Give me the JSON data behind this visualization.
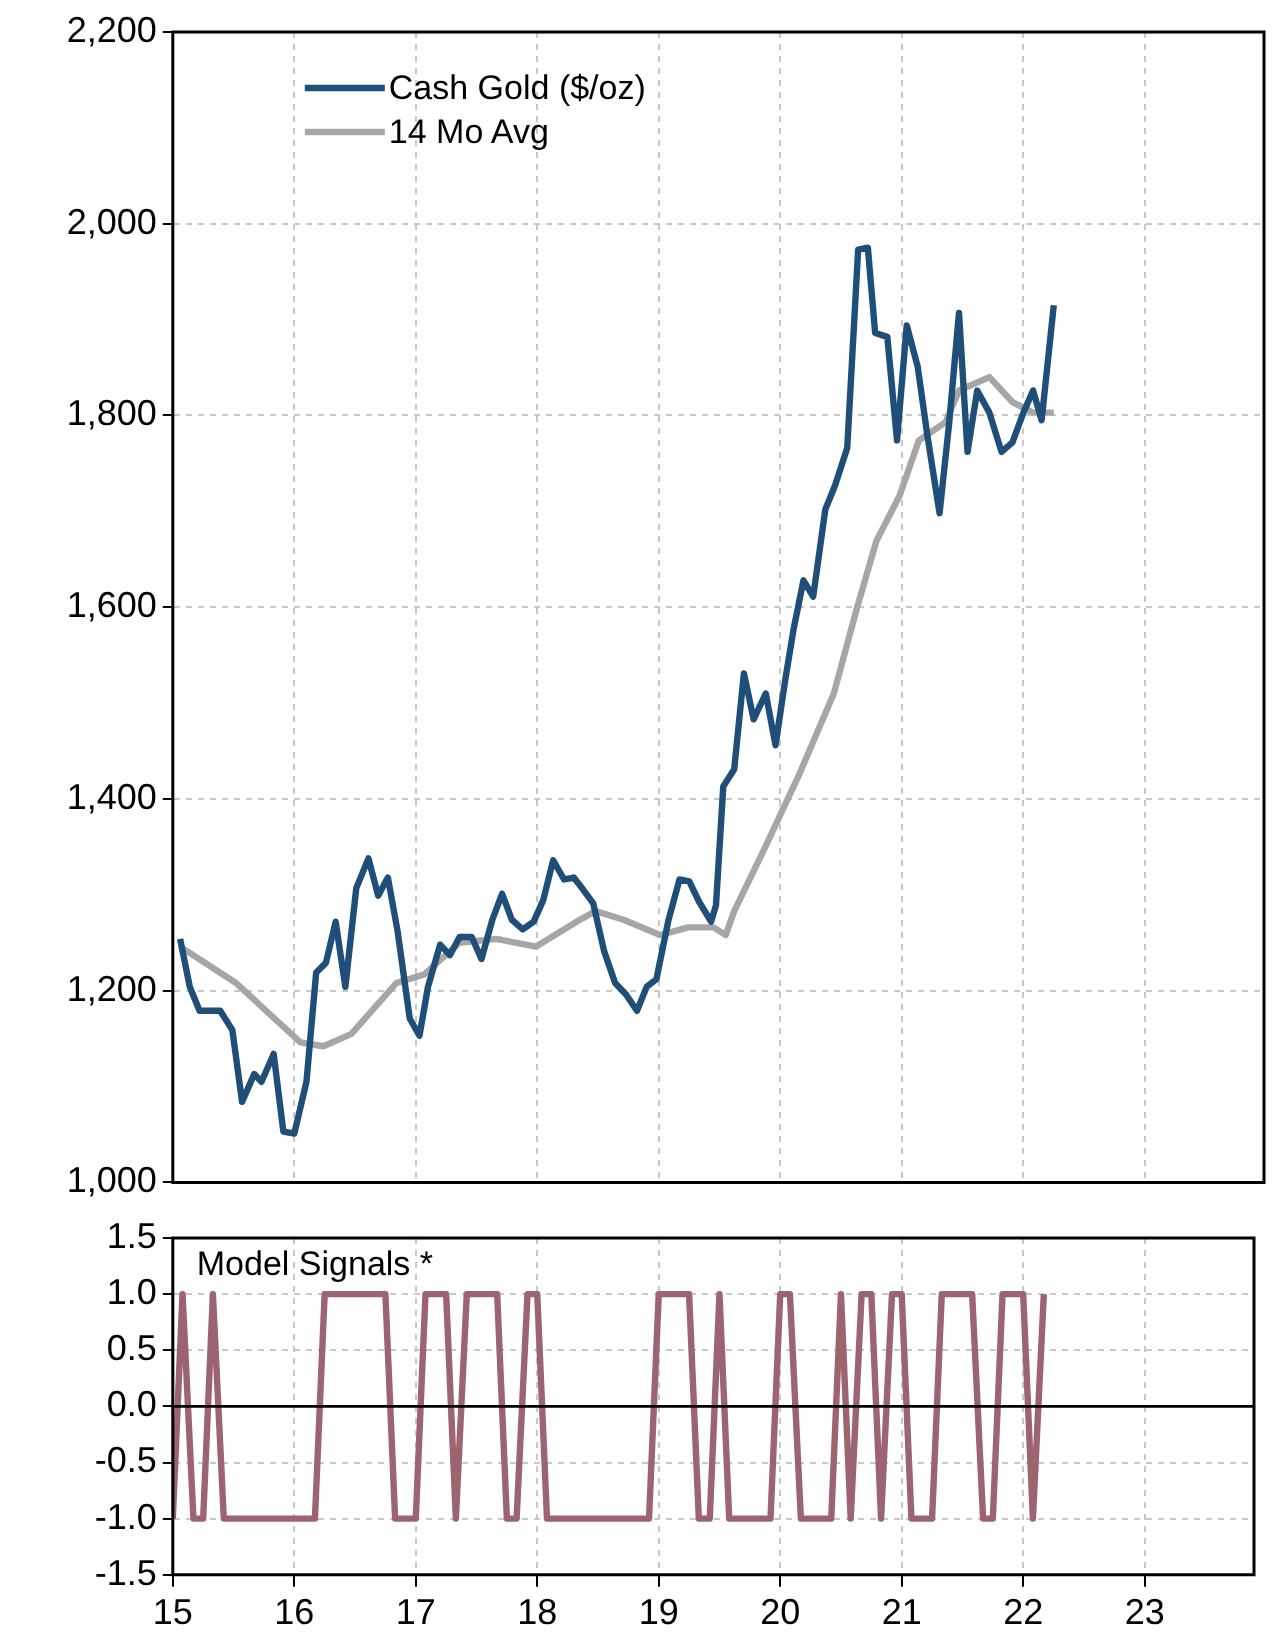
{
  "chart_data": [
    {
      "type": "line",
      "legend": "top left",
      "grid": true,
      "tick_labels": "y",
      "xlim": [
        15,
        23.98
      ],
      "xticks": [
        15,
        16,
        17,
        18,
        19,
        20,
        21,
        22,
        23
      ],
      "ylim": [
        1000,
        2200
      ],
      "yticks": [
        {
          "value": 1000,
          "label": "1,000"
        },
        {
          "value": 1200,
          "label": "1,200"
        },
        {
          "value": 1400,
          "label": "1,400"
        },
        {
          "value": 1600,
          "label": "1,600"
        },
        {
          "value": 1800,
          "label": "1,800"
        },
        {
          "value": 2000,
          "label": "2,000"
        },
        {
          "value": 2200,
          "label": "2,200"
        }
      ],
      "series": [
        {
          "name": "Cash Gold ($/oz)",
          "color": "#1f4e79",
          "x": [
            15.06,
            15.14,
            15.22,
            15.39,
            15.49,
            15.57,
            15.67,
            15.73,
            15.83,
            15.91,
            16,
            16.1,
            16.18,
            16.26,
            16.34,
            16.42,
            16.51,
            16.61,
            16.69,
            16.77,
            16.85,
            16.95,
            17.03,
            17.1,
            17.2,
            17.28,
            17.36,
            17.46,
            17.54,
            17.63,
            17.71,
            17.79,
            17.88,
            17.97,
            18.05,
            18.13,
            18.22,
            18.3,
            18.38,
            18.46,
            18.55,
            18.64,
            18.73,
            18.82,
            18.9,
            18.98,
            19.08,
            19.17,
            19.25,
            19.33,
            19.43,
            19.47,
            19.53,
            19.62,
            19.7,
            19.78,
            19.88,
            19.96,
            20.04,
            20.11,
            20.19,
            20.27,
            20.37,
            20.45,
            20.55,
            20.64,
            20.72,
            20.78,
            20.88,
            20.96,
            21.04,
            21.13,
            21.21,
            21.31,
            21.39,
            21.47,
            21.54,
            21.62,
            21.72,
            21.82,
            21.91,
            22,
            22.08,
            22.15,
            22.25
          ],
          "values": [
            1254,
            1204,
            1179,
            1179,
            1159,
            1084,
            1113,
            1105,
            1134,
            1053,
            1051,
            1105,
            1219,
            1229,
            1272,
            1204,
            1307,
            1338,
            1299,
            1318,
            1262,
            1171,
            1153,
            1204,
            1248,
            1237,
            1256,
            1256,
            1233,
            1274,
            1301,
            1274,
            1264,
            1272,
            1295,
            1336,
            1316,
            1318,
            1305,
            1291,
            1241,
            1208,
            1196,
            1179,
            1204,
            1212,
            1274,
            1316,
            1314,
            1293,
            1272,
            1289,
            1413,
            1431,
            1531,
            1483,
            1510,
            1456,
            1524,
            1578,
            1628,
            1611,
            1702,
            1727,
            1766,
            1973,
            1975,
            1886,
            1882,
            1774,
            1894,
            1851,
            1779,
            1698,
            1793,
            1907,
            1762,
            1826,
            1803,
            1762,
            1772,
            1803,
            1826,
            1795,
            1915
          ]
        },
        {
          "name": "14 Mo Avg",
          "color": "#a6a6a6",
          "x": [
            15.06,
            15.52,
            16.05,
            16.24,
            16.47,
            16.84,
            17.07,
            17.36,
            17.66,
            17.99,
            18.35,
            18.48,
            18.71,
            19.01,
            19.24,
            19.45,
            19.55,
            19.62,
            19.88,
            20.16,
            20.44,
            20.63,
            20.79,
            20.98,
            21.14,
            21.36,
            21.47,
            21.72,
            21.91,
            22.08,
            22.25
          ],
          "values": [
            1246,
            1208,
            1146,
            1142,
            1155,
            1208,
            1217,
            1250,
            1254,
            1246,
            1274,
            1283,
            1274,
            1258,
            1266,
            1266,
            1258,
            1283,
            1351,
            1427,
            1510,
            1599,
            1669,
            1716,
            1774,
            1793,
            1826,
            1840,
            1814,
            1803,
            1803
          ]
        }
      ]
    },
    {
      "type": "line",
      "grid": true,
      "annotations": [
        "Model Signals *"
      ],
      "xlim": [
        15,
        23.9
      ],
      "xticks": [
        15,
        16,
        17,
        18,
        19,
        20,
        21,
        22,
        23
      ],
      "ylim": [
        -1.5,
        1.5
      ],
      "yticks": [
        {
          "value": -1.5,
          "label": "-1.5"
        },
        {
          "value": -1,
          "label": "-1.0"
        },
        {
          "value": -0.5,
          "label": "-0.5"
        },
        {
          "value": 0,
          "label": "0.0"
        },
        {
          "value": 0.5,
          "label": "0.5"
        },
        {
          "value": 1,
          "label": "1.0"
        },
        {
          "value": 1.5,
          "label": "1.5"
        }
      ],
      "ref_lines": [
        {
          "axis": "y",
          "value": 0,
          "color": "#000000"
        }
      ],
      "series": [
        {
          "color": "#9b6470",
          "x": [
            15,
            15.08,
            15.17,
            15.25,
            15.33,
            15.42,
            15.5,
            15.58,
            15.67,
            15.75,
            15.83,
            15.92,
            16,
            16.08,
            16.17,
            16.25,
            16.33,
            16.42,
            16.5,
            16.58,
            16.67,
            16.75,
            16.83,
            16.92,
            17,
            17.08,
            17.17,
            17.25,
            17.33,
            17.42,
            17.5,
            17.58,
            17.67,
            17.75,
            17.83,
            17.92,
            18,
            18.08,
            18.17,
            18.25,
            18.33,
            18.42,
            18.5,
            18.58,
            18.67,
            18.75,
            18.83,
            18.92,
            19,
            19.08,
            19.17,
            19.25,
            19.33,
            19.42,
            19.5,
            19.58,
            19.67,
            19.75,
            19.83,
            19.92,
            20,
            20.08,
            20.17,
            20.25,
            20.33,
            20.42,
            20.5,
            20.58,
            20.67,
            20.75,
            20.83,
            20.92,
            21,
            21.08,
            21.17,
            21.25,
            21.33,
            21.42,
            21.5,
            21.58,
            21.67,
            21.75,
            21.83,
            21.92,
            22,
            22.08,
            22.17
          ],
          "values": [
            -1,
            1,
            -1,
            -1,
            1,
            -1,
            -1,
            -1,
            -1,
            -1,
            -1,
            -1,
            -1,
            -1,
            -1,
            1,
            1,
            1,
            1,
            1,
            1,
            1,
            -1,
            -1,
            -1,
            1,
            1,
            1,
            -1,
            1,
            1,
            1,
            1,
            -1,
            -1,
            1,
            1,
            -1,
            -1,
            -1,
            -1,
            -1,
            -1,
            -1,
            -1,
            -1,
            -1,
            -1,
            1,
            1,
            1,
            1,
            -1,
            -1,
            1,
            -1,
            -1,
            -1,
            -1,
            -1,
            1,
            1,
            -1,
            -1,
            -1,
            -1,
            1,
            -1,
            1,
            1,
            -1,
            1,
            1,
            -1,
            -1,
            -1,
            1,
            1,
            1,
            1,
            -1,
            -1,
            1,
            1,
            1,
            -1,
            1
          ]
        }
      ]
    }
  ]
}
